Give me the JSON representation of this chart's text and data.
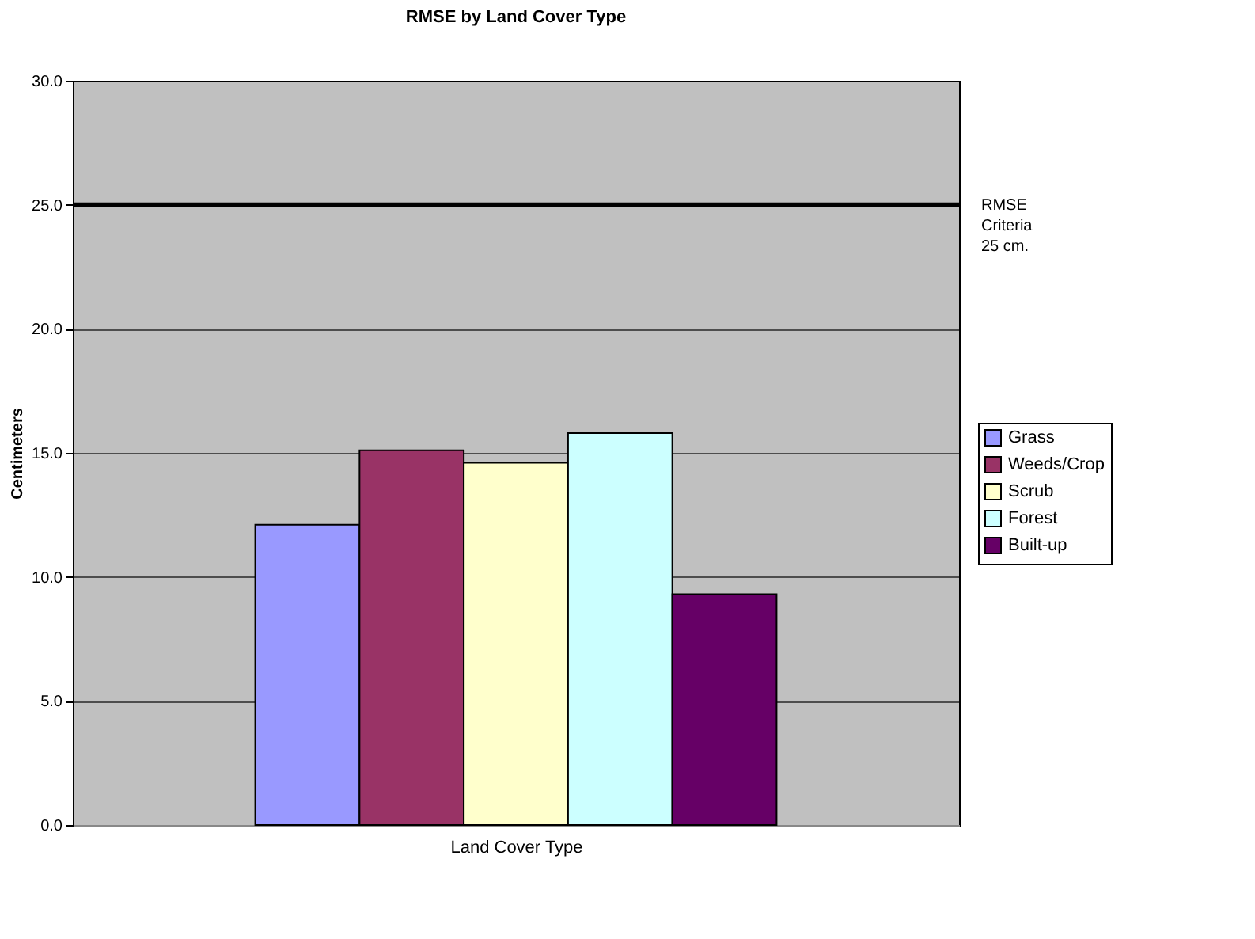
{
  "chart_data": {
    "type": "bar",
    "title": "RMSE by Land Cover Type",
    "xlabel": "Land Cover Type",
    "ylabel": "Centimeters",
    "categories": [
      null
    ],
    "series": [
      {
        "name": "Grass",
        "color": "#9999ff",
        "values": [
          12.1
        ]
      },
      {
        "name": "Weeds/Crop",
        "color": "#993366",
        "values": [
          15.1
        ]
      },
      {
        "name": "Scrub",
        "color": "#ffffcc",
        "values": [
          14.6
        ]
      },
      {
        "name": "Forest",
        "color": "#ccffff",
        "values": [
          15.8
        ]
      },
      {
        "name": "Built-up",
        "color": "#660066",
        "values": [
          9.3
        ]
      }
    ],
    "ylim": [
      0,
      30
    ],
    "yticks": [
      {
        "value": 0,
        "label": "0.0"
      },
      {
        "value": 5,
        "label": "5.0"
      },
      {
        "value": 10,
        "label": "10.0"
      },
      {
        "value": 15,
        "label": "15.0"
      },
      {
        "value": 20,
        "label": "20.0"
      },
      {
        "value": 25,
        "label": "25.0"
      },
      {
        "value": 30,
        "label": "30.0"
      }
    ],
    "ref_lines": [
      {
        "axis": "y",
        "value": 25,
        "label": "RMSE\nCriteria\n25 cm.",
        "color": "#000000"
      }
    ],
    "grid": "y",
    "legend": "right"
  }
}
